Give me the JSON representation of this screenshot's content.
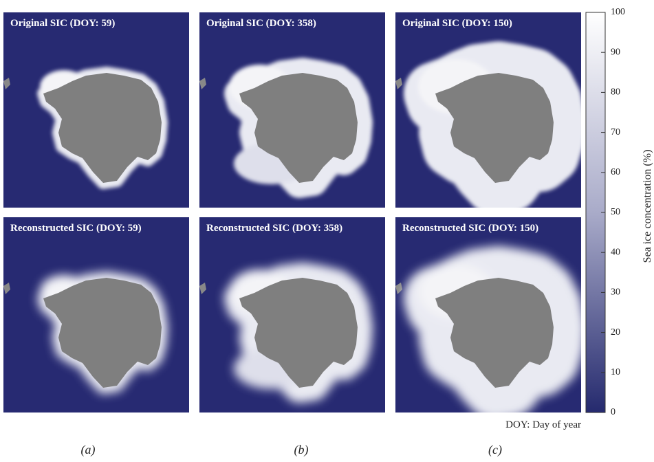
{
  "panels": [
    {
      "title": "Original SIC (DOY: 59)"
    },
    {
      "title": "Original SIC (DOY: 358)"
    },
    {
      "title": "Original SIC (DOY: 150)"
    },
    {
      "title": "Reconstructed SIC (DOY: 59)"
    },
    {
      "title": "Reconstructed SIC (DOY: 358)"
    },
    {
      "title": "Reconstructed SIC (DOY: 150)"
    }
  ],
  "colorbar": {
    "label": "Sea ice concentration (%)",
    "range": [
      0,
      100
    ],
    "ticks": [
      0,
      10,
      20,
      30,
      40,
      50,
      60,
      70,
      80,
      90,
      100
    ]
  },
  "note": "DOY: Day of year",
  "captions": [
    "(a)",
    "(b)",
    "(c)"
  ]
}
